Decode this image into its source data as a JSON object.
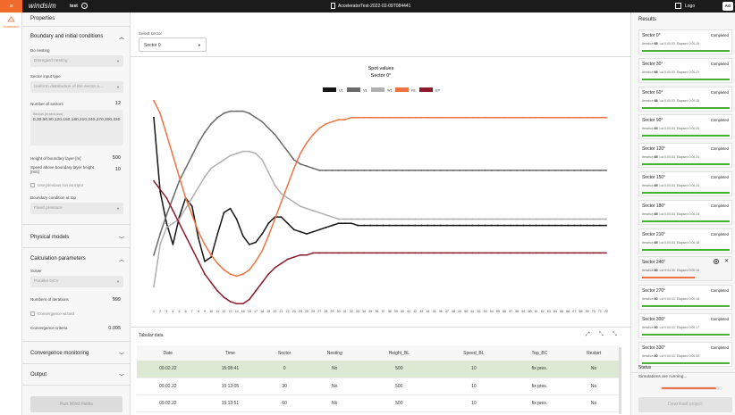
{
  "topbar": {
    "logo": "windsim",
    "project": "test",
    "file": "AcceleratorTest-2022-02-09T084441",
    "logout": "Logo",
    "avatar": "AG"
  },
  "nav": {
    "active": "Accelerator"
  },
  "properties": {
    "title": "Properties",
    "boundary": {
      "title": "Boundary and initial conditions",
      "nesting_label": "Do nesting",
      "nesting_value": "Disregard nesting",
      "input_label": "Sector input type",
      "input_value": "Uniform distribution of the sector a...",
      "sectors_label": "Number of sectors",
      "sectors_value": "12",
      "ta_caption": "Sectors (in wind axis)",
      "ta_value": "0,30,60,90,120,150,180,210,240,270,300,330",
      "height_label": "Height of boundary layer [m]",
      "height_value": "500",
      "speed_label": "Speed above boundary layer height [m/s]",
      "speed_value": "10",
      "prev_label": "Use previous run as input",
      "top_label": "Boundary condition at top",
      "top_value": "Fixed pressure"
    },
    "physical": "Physical models",
    "calc": {
      "title": "Calculation parameters",
      "solver_label": "Solver",
      "solver_value": "Parallel GCV",
      "iter_label": "Numbers of iterations",
      "iter_value": "999",
      "wizard_label": "Convergence wizard",
      "criteria_label": "Convergence criteria",
      "criteria_value": "0.005"
    },
    "monitoring": "Convergence monitoring",
    "output": "Output",
    "run_button": "Run Wind Fields"
  },
  "main": {
    "sector_label": "Select sector",
    "sector_value": "Sector 0"
  },
  "chart_data": {
    "type": "line",
    "title": "Spot values",
    "subtitle": "Sector 0°",
    "xlim": [
      1,
      72
    ],
    "ylim": [
      0,
      1
    ],
    "series": [
      {
        "name": "U1",
        "color": "#151515",
        "values": [
          0.9,
          0.55,
          0.4,
          0.3,
          0.43,
          0.52,
          0.48,
          0.33,
          0.22,
          0.24,
          0.35,
          0.45,
          0.47,
          0.42,
          0.34,
          0.3,
          0.31,
          0.35,
          0.4,
          0.43,
          0.43,
          0.4,
          0.37,
          0.36,
          0.35,
          0.36,
          0.37,
          0.38,
          0.39,
          0.4,
          0.4,
          0.4,
          0.39,
          0.39,
          0.39,
          0.39,
          0.39,
          0.39,
          0.39,
          0.39,
          0.39,
          0.39,
          0.39,
          0.39,
          0.39,
          0.39,
          0.39,
          0.39,
          0.39,
          0.39,
          0.39,
          0.39,
          0.39,
          0.39,
          0.39,
          0.39,
          0.39,
          0.39,
          0.39,
          0.39,
          0.39,
          0.39,
          0.39,
          0.39,
          0.39,
          0.39,
          0.39,
          0.39,
          0.39,
          0.39,
          0.39,
          0.39
        ]
      },
      {
        "name": "V1",
        "color": "#6a6a6a",
        "values": [
          0.25,
          0.35,
          0.44,
          0.52,
          0.6,
          0.66,
          0.72,
          0.78,
          0.83,
          0.87,
          0.9,
          0.92,
          0.93,
          0.93,
          0.93,
          0.92,
          0.9,
          0.88,
          0.85,
          0.82,
          0.78,
          0.74,
          0.7,
          0.68,
          0.67,
          0.66,
          0.65,
          0.65,
          0.65,
          0.65,
          0.65,
          0.65,
          0.65,
          0.65,
          0.65,
          0.65,
          0.65,
          0.65,
          0.65,
          0.65,
          0.65,
          0.65,
          0.65,
          0.65,
          0.65,
          0.65,
          0.65,
          0.65,
          0.65,
          0.65,
          0.65,
          0.65,
          0.65,
          0.65,
          0.65,
          0.65,
          0.65,
          0.65,
          0.65,
          0.65,
          0.65,
          0.65,
          0.65,
          0.65,
          0.65,
          0.65,
          0.65,
          0.65,
          0.65,
          0.65,
          0.65,
          0.65
        ]
      },
      {
        "name": "W1",
        "color": "#b0b0b0",
        "values": [
          0.1,
          0.3,
          0.38,
          0.4,
          0.42,
          0.47,
          0.52,
          0.57,
          0.62,
          0.66,
          0.68,
          0.7,
          0.72,
          0.73,
          0.74,
          0.74,
          0.73,
          0.7,
          0.64,
          0.58,
          0.54,
          0.52,
          0.5,
          0.48,
          0.47,
          0.46,
          0.45,
          0.44,
          0.43,
          0.42,
          0.42,
          0.42,
          0.42,
          0.42,
          0.42,
          0.42,
          0.42,
          0.42,
          0.42,
          0.42,
          0.42,
          0.42,
          0.42,
          0.42,
          0.42,
          0.42,
          0.42,
          0.42,
          0.42,
          0.42,
          0.42,
          0.42,
          0.42,
          0.42,
          0.42,
          0.42,
          0.42,
          0.42,
          0.42,
          0.42,
          0.42,
          0.42,
          0.42,
          0.42,
          0.42,
          0.42,
          0.42,
          0.42,
          0.42,
          0.42,
          0.42,
          0.42
        ]
      },
      {
        "name": "KE",
        "color": "#ee7342",
        "values": [
          0.98,
          0.92,
          0.82,
          0.72,
          0.62,
          0.52,
          0.44,
          0.36,
          0.3,
          0.25,
          0.21,
          0.18,
          0.16,
          0.15,
          0.16,
          0.18,
          0.22,
          0.27,
          0.34,
          0.42,
          0.5,
          0.58,
          0.66,
          0.73,
          0.78,
          0.82,
          0.85,
          0.87,
          0.88,
          0.89,
          0.89,
          0.9,
          0.9,
          0.9,
          0.9,
          0.9,
          0.9,
          0.9,
          0.9,
          0.9,
          0.9,
          0.9,
          0.9,
          0.9,
          0.9,
          0.9,
          0.9,
          0.9,
          0.9,
          0.9,
          0.9,
          0.9,
          0.9,
          0.9,
          0.9,
          0.9,
          0.9,
          0.9,
          0.9,
          0.9,
          0.9,
          0.9,
          0.9,
          0.9,
          0.9,
          0.9,
          0.9,
          0.9,
          0.9,
          0.9,
          0.9,
          0.9
        ]
      },
      {
        "name": "EP",
        "color": "#8b1a2a",
        "values": [
          0.6,
          0.56,
          0.52,
          0.46,
          0.4,
          0.34,
          0.28,
          0.22,
          0.16,
          0.12,
          0.08,
          0.05,
          0.03,
          0.02,
          0.02,
          0.04,
          0.08,
          0.12,
          0.16,
          0.19,
          0.21,
          0.23,
          0.24,
          0.25,
          0.25,
          0.26,
          0.26,
          0.26,
          0.26,
          0.26,
          0.26,
          0.26,
          0.26,
          0.26,
          0.26,
          0.26,
          0.26,
          0.26,
          0.26,
          0.26,
          0.26,
          0.26,
          0.26,
          0.26,
          0.26,
          0.26,
          0.26,
          0.26,
          0.26,
          0.26,
          0.26,
          0.26,
          0.26,
          0.26,
          0.26,
          0.26,
          0.26,
          0.26,
          0.26,
          0.26,
          0.26,
          0.26,
          0.26,
          0.26,
          0.26,
          0.26,
          0.26,
          0.26,
          0.26,
          0.26,
          0.26,
          0.26
        ]
      }
    ]
  },
  "tabular": {
    "title": "Tabular data",
    "columns": [
      "Date",
      "Time",
      "Sector",
      "Nesting",
      "Height_BL",
      "Speed_BL",
      "Top_BC",
      "Restart"
    ],
    "rows": [
      [
        "09.02.22",
        "15:08:41",
        "0",
        "No",
        "500",
        "10",
        "fix pres.",
        "No"
      ],
      [
        "09.02.22",
        "15:13:05",
        "30",
        "No",
        "500",
        "10",
        "fix pres.",
        "No"
      ],
      [
        "09.02.22",
        "15:13:51",
        "60",
        "No",
        "500",
        "10",
        "fix pres.",
        "No"
      ]
    ]
  },
  "results": {
    "title": "Results",
    "cards": [
      {
        "name": "Sector 0°",
        "status": "Completed",
        "iter": "65",
        "lst": "0:00:03",
        "elapsed": "0:00:19"
      },
      {
        "name": "Sector 30°",
        "status": "Completed",
        "iter": "65",
        "lst": "0:00:03",
        "elapsed": "0:00:21"
      },
      {
        "name": "Sector 60°",
        "status": "Completed",
        "iter": "68",
        "lst": "0:00:03",
        "elapsed": "0:00:18"
      },
      {
        "name": "Sector 90°",
        "status": "Completed",
        "iter": "63",
        "lst": "0:00:03",
        "elapsed": "0:00:20"
      },
      {
        "name": "Sector 120°",
        "status": "Completed",
        "iter": "65",
        "lst": "0:00:03",
        "elapsed": "0:00:21"
      },
      {
        "name": "Sector 150°",
        "status": "Completed",
        "iter": "65",
        "lst": "0:00:03",
        "elapsed": "0:00:24"
      },
      {
        "name": "Sector 180°",
        "status": "Completed",
        "iter": "65",
        "lst": "0:00:03",
        "elapsed": "0:00:23"
      },
      {
        "name": "Sector 210°",
        "status": "Completed",
        "iter": "65",
        "lst": "0:00:03",
        "elapsed": "0:00:18"
      },
      {
        "name": "Sector 240°",
        "status": "",
        "iter": "60",
        "lst": "0:04:30",
        "elapsed": "0:00:16",
        "progress": 0.6
      },
      {
        "name": "Sector 270°",
        "status": "Completed",
        "iter": "60",
        "lst": "0:00:03",
        "elapsed": "0:00:16"
      },
      {
        "name": "Sector 300°",
        "status": "Completed",
        "iter": "60",
        "lst": "0:00:03",
        "elapsed": "0:00:17"
      },
      {
        "name": "Sector 330°",
        "status": "Completed",
        "iter": "80",
        "lst": "0:00:03",
        "elapsed": "0:00:22"
      }
    ],
    "status_title": "Status",
    "status_text": "Simulations are running...",
    "status_progress": 0.92,
    "download": "Download project",
    "labels": {
      "iter": "Iteration",
      "lst": "Lst",
      "elapsed": "Elapsed"
    }
  }
}
